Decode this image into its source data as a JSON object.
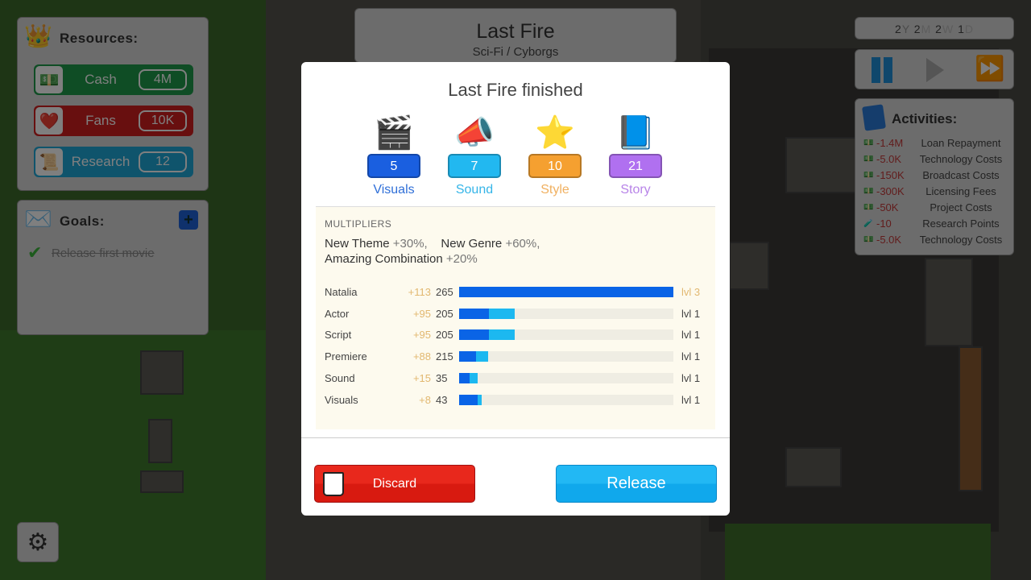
{
  "resources": {
    "title": "Resources:",
    "items": [
      {
        "label": "Cash",
        "value": "4M",
        "icon": "cash-icon",
        "color": "#1f9a4a"
      },
      {
        "label": "Fans",
        "value": "10K",
        "icon": "heart-icon",
        "color": "#d11f1f"
      },
      {
        "label": "Research",
        "value": "12",
        "icon": "scroll-icon",
        "color": "#1fa8d8"
      }
    ]
  },
  "goals": {
    "title": "Goals:",
    "items": [
      {
        "label": "Release first movie",
        "done": true
      }
    ]
  },
  "project": {
    "title": "Last Fire",
    "genre": "Sci-Fi / Cyborgs"
  },
  "date": {
    "y": "2",
    "y_unit": "Y",
    "m": "2",
    "m_unit": "M",
    "w": "2",
    "w_unit": "W",
    "d": "1",
    "d_unit": "D"
  },
  "activities": {
    "title": "Activities:",
    "items": [
      {
        "amount": "-1.4M",
        "name": "Loan Repayment",
        "icon": "cash-icon"
      },
      {
        "amount": "-5.0K",
        "name": "Technology Costs",
        "icon": "cash-icon"
      },
      {
        "amount": "-150K",
        "name": "Broadcast Costs",
        "icon": "cash-icon"
      },
      {
        "amount": "-300K",
        "name": "Licensing Fees",
        "icon": "cash-icon"
      },
      {
        "amount": "-50K",
        "name": "Project Costs",
        "icon": "cash-icon"
      },
      {
        "amount": "-10",
        "name": "Research Points",
        "icon": "research-icon"
      },
      {
        "amount": "-5.0K",
        "name": "Technology Costs",
        "icon": "cash-icon"
      }
    ]
  },
  "modal": {
    "title": "Last Fire finished",
    "stats": [
      {
        "name": "Visuals",
        "value": "5",
        "color": "#1a5fe0",
        "text_color": "#2f6fd8",
        "icon": "clapperboard-icon"
      },
      {
        "name": "Sound",
        "value": "7",
        "color": "#22b8f0",
        "text_color": "#35b5e8",
        "icon": "megaphone-icon"
      },
      {
        "name": "Style",
        "value": "10",
        "color": "#f5a030",
        "text_color": "#f0b060",
        "icon": "star-icon"
      },
      {
        "name": "Story",
        "value": "21",
        "color": "#b070f0",
        "text_color": "#b884e8",
        "icon": "book-icon"
      }
    ],
    "multipliers_label": "MULTIPLIERS",
    "multipliers": [
      {
        "name": "New Theme",
        "value": "+30%,"
      },
      {
        "name": "New Genre",
        "value": "+60%,"
      },
      {
        "name": "Amazing Combination",
        "value": "+20%"
      }
    ],
    "rows": [
      {
        "name": "Natalia",
        "bonus": "+113",
        "value": "265",
        "level": "lvl 3",
        "base_fill": 1.0,
        "total_fill": 1.0,
        "highlight": true
      },
      {
        "name": "Actor",
        "bonus": "+95",
        "value": "205",
        "level": "lvl 1",
        "base_fill": 0.14,
        "total_fill": 0.26
      },
      {
        "name": "Script",
        "bonus": "+95",
        "value": "205",
        "level": "lvl 1",
        "base_fill": 0.14,
        "total_fill": 0.26
      },
      {
        "name": "Premiere",
        "bonus": "+88",
        "value": "215",
        "level": "lvl 1",
        "base_fill": 0.08,
        "total_fill": 0.135
      },
      {
        "name": "Sound",
        "bonus": "+15",
        "value": "35",
        "level": "lvl 1",
        "base_fill": 0.05,
        "total_fill": 0.087
      },
      {
        "name": "Visuals",
        "bonus": "+8",
        "value": "43",
        "level": "lvl 1",
        "base_fill": 0.087,
        "total_fill": 0.107
      }
    ],
    "discard": "Discard",
    "release": "Release"
  }
}
